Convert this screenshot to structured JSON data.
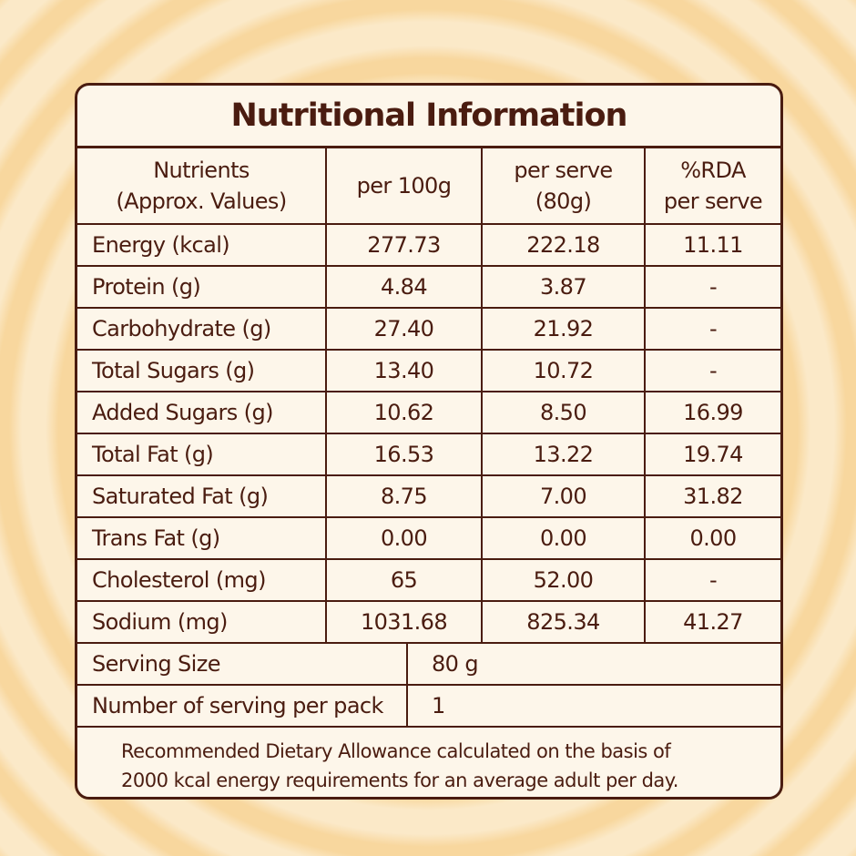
{
  "title": "Nutritional Information",
  "headers": {
    "nutrients": [
      "Nutrients",
      "(Approx. Values)"
    ],
    "per100": [
      "per 100g"
    ],
    "perServe": [
      "per serve",
      "(80g)"
    ],
    "rda": [
      "%RDA",
      "per serve"
    ]
  },
  "rows": [
    {
      "name": "Energy (kcal)",
      "per100": "277.73",
      "perServe": "222.18",
      "rda": "11.11"
    },
    {
      "name": "Protein (g)",
      "per100": "4.84",
      "perServe": "3.87",
      "rda": "-"
    },
    {
      "name": "Carbohydrate (g)",
      "per100": "27.40",
      "perServe": "21.92",
      "rda": "-"
    },
    {
      "name": "Total Sugars (g)",
      "per100": "13.40",
      "perServe": "10.72",
      "rda": "-"
    },
    {
      "name": "Added Sugars (g)",
      "per100": "10.62",
      "perServe": "8.50",
      "rda": "16.99"
    },
    {
      "name": "Total Fat (g)",
      "per100": "16.53",
      "perServe": "13.22",
      "rda": "19.74"
    },
    {
      "name": "Saturated Fat (g)",
      "per100": "8.75",
      "perServe": "7.00",
      "rda": "31.82"
    },
    {
      "name": "Trans Fat (g)",
      "per100": "0.00",
      "perServe": "0.00",
      "rda": "0.00"
    },
    {
      "name": "Cholesterol (mg)",
      "per100": "65",
      "perServe": "52.00",
      "rda": "-"
    },
    {
      "name": "Sodium (mg)",
      "per100": "1031.68",
      "perServe": "825.34",
      "rda": "41.27"
    }
  ],
  "serving": {
    "size_label": "Serving Size",
    "size_value": "80 g",
    "count_label": "Number of serving per pack",
    "count_value": "1"
  },
  "footnote": [
    "Recommended Dietary Allowance calculated on the basis of",
    "2000 kcal energy requirements for an average adult per day."
  ],
  "colors": {
    "ink": "#4a1c10",
    "panel": "#fdf6ea",
    "ring_light": "#fbe9c8",
    "ring_dark": "#f8d79e"
  }
}
